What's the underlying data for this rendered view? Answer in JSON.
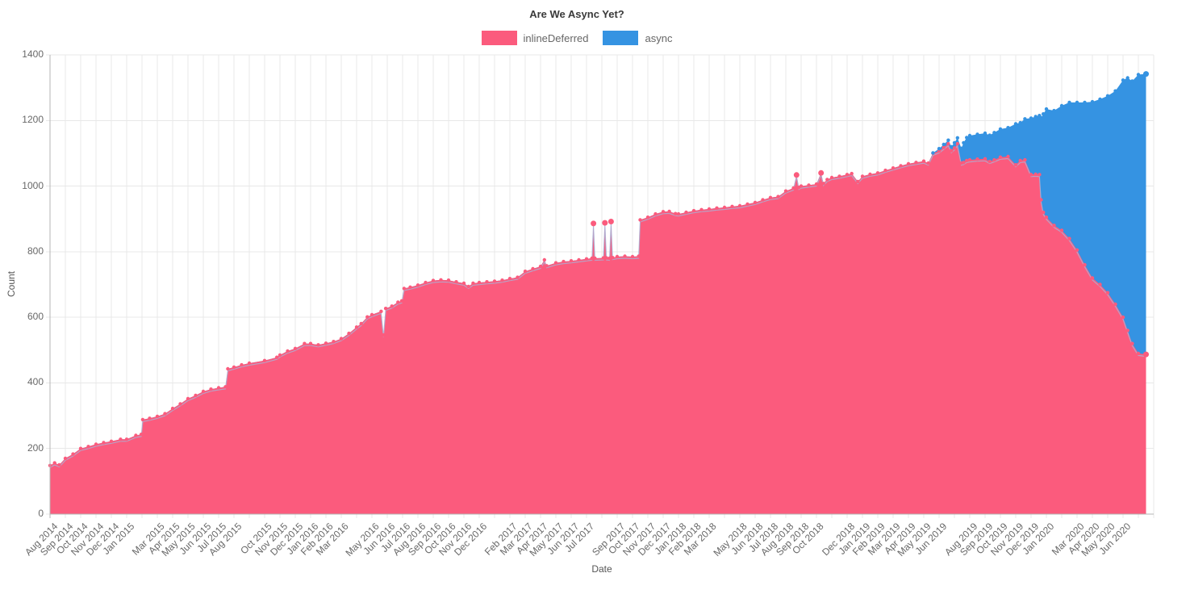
{
  "title": "Are We Async Yet?",
  "legend": [
    {
      "label": "inlineDeferred",
      "color": "#FB5B7D"
    },
    {
      "label": "async",
      "color": "#3593E2"
    }
  ],
  "chart_data": {
    "type": "area",
    "stacked": true,
    "title": "Are We Async Yet?",
    "xlabel": "Date",
    "ylabel": "Count",
    "ylim": [
      0,
      1400
    ],
    "yticks": [
      0,
      200,
      400,
      600,
      800,
      1000,
      1200,
      1400
    ],
    "grid": true,
    "legend_position": "top",
    "x_unit": "months since Aug 2014",
    "x_axis_month_count": 72,
    "series_names": [
      "inlineDeferred",
      "async"
    ],
    "series_colors": [
      "#FB5B7D",
      "#3593E2"
    ],
    "line_edge_color": "#A9B4D8",
    "xtick_labels": [
      [
        0,
        "Aug 2014"
      ],
      [
        1,
        "Sep 2014"
      ],
      [
        2,
        "Oct 2014"
      ],
      [
        3,
        "Nov 2014"
      ],
      [
        4,
        "Dec 2014"
      ],
      [
        5,
        "Jan 2015"
      ],
      [
        7,
        "Mar 2015"
      ],
      [
        8,
        "Apr 2015"
      ],
      [
        9,
        "May 2015"
      ],
      [
        10,
        "Jun 2015"
      ],
      [
        11,
        "Jul 2015"
      ],
      [
        12,
        "Aug 2015"
      ],
      [
        14,
        "Oct 2015"
      ],
      [
        15,
        "Nov 2015"
      ],
      [
        16,
        "Dec 2015"
      ],
      [
        17,
        "Jan 2016"
      ],
      [
        18,
        "Feb 2016"
      ],
      [
        19,
        "Mar 2016"
      ],
      [
        21,
        "May 2016"
      ],
      [
        22,
        "Jun 2016"
      ],
      [
        23,
        "Jul 2016"
      ],
      [
        24,
        "Aug 2016"
      ],
      [
        25,
        "Sep 2016"
      ],
      [
        26,
        "Oct 2016"
      ],
      [
        27,
        "Nov 2016"
      ],
      [
        28,
        "Dec 2016"
      ],
      [
        30,
        "Feb 2017"
      ],
      [
        31,
        "Mar 2017"
      ],
      [
        32,
        "Apr 2017"
      ],
      [
        33,
        "May 2017"
      ],
      [
        34,
        "Jun 2017"
      ],
      [
        35,
        "Jul 2017"
      ],
      [
        37,
        "Sep 2017"
      ],
      [
        38,
        "Oct 2017"
      ],
      [
        39,
        "Nov 2017"
      ],
      [
        40,
        "Dec 2017"
      ],
      [
        41,
        "Jan 2018"
      ],
      [
        42,
        "Feb 2018"
      ],
      [
        43,
        "Mar 2018"
      ],
      [
        45,
        "May 2018"
      ],
      [
        46,
        "Jun 2018"
      ],
      [
        47,
        "Jul 2018"
      ],
      [
        48,
        "Aug 2018"
      ],
      [
        49,
        "Sep 2018"
      ],
      [
        50,
        "Oct 2018"
      ],
      [
        52,
        "Dec 2018"
      ],
      [
        53,
        "Jan 2019"
      ],
      [
        54,
        "Feb 2019"
      ],
      [
        55,
        "Mar 2019"
      ],
      [
        56,
        "Apr 2019"
      ],
      [
        57,
        "May 2019"
      ],
      [
        58,
        "Jun 2019"
      ],
      [
        60,
        "Aug 2019"
      ],
      [
        61,
        "Sep 2019"
      ],
      [
        62,
        "Oct 2019"
      ],
      [
        63,
        "Nov 2019"
      ],
      [
        64,
        "Dec 2019"
      ],
      [
        65,
        "Jan 2020"
      ],
      [
        67,
        "Mar 2020"
      ],
      [
        68,
        "Apr 2020"
      ],
      [
        69,
        "May 2020"
      ],
      [
        70,
        "Jun 2020"
      ]
    ],
    "points": [
      [
        0,
        148,
        0
      ],
      [
        0.3,
        156,
        0
      ],
      [
        0.6,
        150,
        0
      ],
      [
        1,
        170,
        0
      ],
      [
        1.5,
        183,
        0
      ],
      [
        2,
        200,
        0
      ],
      [
        2.5,
        206,
        0
      ],
      [
        3,
        213,
        0
      ],
      [
        3.5,
        218,
        0
      ],
      [
        4,
        222,
        0
      ],
      [
        4.6,
        228,
        0
      ],
      [
        5,
        228,
        0
      ],
      [
        5.6,
        240,
        0
      ],
      [
        5.95,
        243,
        0
      ],
      [
        6.05,
        288,
        0
      ],
      [
        6.5,
        292,
        0
      ],
      [
        7,
        298,
        0
      ],
      [
        7.5,
        306,
        0
      ],
      [
        8,
        322,
        0
      ],
      [
        8.5,
        336,
        0
      ],
      [
        9,
        352,
        0
      ],
      [
        9.5,
        362,
        0
      ],
      [
        10,
        374,
        0
      ],
      [
        10.5,
        381,
        0
      ],
      [
        11,
        385,
        0
      ],
      [
        11.45,
        388,
        0
      ],
      [
        11.6,
        443,
        0
      ],
      [
        12,
        448,
        0
      ],
      [
        12.5,
        455,
        0
      ],
      [
        13,
        460,
        0
      ],
      [
        14,
        468,
        0
      ],
      [
        14.8,
        478,
        0
      ],
      [
        15,
        485,
        0
      ],
      [
        15.5,
        497,
        0
      ],
      [
        16,
        505,
        0
      ],
      [
        16.6,
        520,
        0
      ],
      [
        17,
        520,
        0
      ],
      [
        17.5,
        516,
        0
      ],
      [
        18,
        521,
        0
      ],
      [
        18.5,
        526,
        0
      ],
      [
        19,
        535,
        0
      ],
      [
        19.5,
        551,
        0
      ],
      [
        20,
        570,
        0
      ],
      [
        20.3,
        581,
        0
      ],
      [
        20.7,
        601,
        0
      ],
      [
        21,
        608,
        0
      ],
      [
        21.6,
        618,
        0
      ],
      [
        21.75,
        546,
        0
      ],
      [
        21.9,
        627,
        0
      ],
      [
        22.3,
        634,
        0
      ],
      [
        22.7,
        646,
        0
      ],
      [
        22.95,
        650,
        0
      ],
      [
        23.1,
        688,
        0
      ],
      [
        23.5,
        692,
        0
      ],
      [
        24,
        698,
        0
      ],
      [
        24.5,
        706,
        0
      ],
      [
        25,
        712,
        0
      ],
      [
        25.5,
        714,
        0
      ],
      [
        26,
        713,
        0
      ],
      [
        26.5,
        708,
        0
      ],
      [
        27,
        704,
        0
      ],
      [
        27.3,
        694,
        0
      ],
      [
        27.6,
        704,
        0
      ],
      [
        28,
        706,
        0
      ],
      [
        28.5,
        708,
        0
      ],
      [
        29,
        710,
        0
      ],
      [
        29.5,
        713,
        0
      ],
      [
        30,
        718,
        0
      ],
      [
        30.5,
        722,
        0
      ],
      [
        31,
        740,
        0
      ],
      [
        31.5,
        748,
        0
      ],
      [
        32,
        755,
        0
      ],
      [
        32.25,
        775,
        0
      ],
      [
        32.4,
        757,
        0
      ],
      [
        33,
        766,
        0
      ],
      [
        33.5,
        770,
        0
      ],
      [
        34,
        772,
        0
      ],
      [
        34.5,
        775,
        0
      ],
      [
        35,
        778,
        0
      ],
      [
        35.35,
        780,
        0
      ],
      [
        35.45,
        886,
        0
      ],
      [
        35.55,
        780,
        0
      ],
      [
        36.1,
        781,
        0
      ],
      [
        36.2,
        888,
        0
      ],
      [
        36.3,
        781,
        0
      ],
      [
        36.5,
        780,
        0
      ],
      [
        36.6,
        892,
        0
      ],
      [
        36.7,
        782,
        0
      ],
      [
        37,
        785,
        0
      ],
      [
        37.5,
        786,
        0
      ],
      [
        38,
        785,
        0
      ],
      [
        38.4,
        786,
        0
      ],
      [
        38.5,
        897,
        0
      ],
      [
        39,
        905,
        0
      ],
      [
        39.5,
        915,
        0
      ],
      [
        40,
        922,
        0
      ],
      [
        40.4,
        923,
        0
      ],
      [
        40.8,
        916,
        0
      ],
      [
        41,
        915,
        0
      ],
      [
        41.5,
        920,
        0
      ],
      [
        42,
        925,
        0
      ],
      [
        42.5,
        928,
        0
      ],
      [
        43,
        930,
        0
      ],
      [
        43.5,
        933,
        0
      ],
      [
        44,
        935,
        0
      ],
      [
        44.5,
        938,
        0
      ],
      [
        45,
        940,
        0
      ],
      [
        45.5,
        945,
        0
      ],
      [
        46,
        950,
        0
      ],
      [
        46.5,
        958,
        0
      ],
      [
        47,
        965,
        0
      ],
      [
        47.5,
        968,
        0
      ],
      [
        48,
        985,
        0
      ],
      [
        48.5,
        994,
        0
      ],
      [
        48.7,
        1034,
        0
      ],
      [
        48.85,
        996,
        0
      ],
      [
        49,
        1000,
        0
      ],
      [
        49.5,
        1003,
        0
      ],
      [
        50,
        1006,
        0
      ],
      [
        50.3,
        1040,
        0
      ],
      [
        50.45,
        1008,
        0
      ],
      [
        50.7,
        1020,
        0
      ],
      [
        51,
        1026,
        0
      ],
      [
        51.5,
        1030,
        0
      ],
      [
        52,
        1035,
        0
      ],
      [
        52.3,
        1038,
        0
      ],
      [
        52.7,
        1014,
        0
      ],
      [
        53,
        1030,
        0
      ],
      [
        53.5,
        1036,
        0
      ],
      [
        54,
        1040,
        0
      ],
      [
        54.5,
        1048,
        0
      ],
      [
        55,
        1055,
        0
      ],
      [
        55.5,
        1062,
        0
      ],
      [
        56,
        1068,
        0
      ],
      [
        56.5,
        1072,
        0
      ],
      [
        57,
        1076,
        0
      ],
      [
        57.3,
        1070,
        0
      ],
      [
        57.6,
        1100,
        1
      ],
      [
        58,
        1107,
        7
      ],
      [
        58.3,
        1118,
        9
      ],
      [
        58.6,
        1129,
        11
      ],
      [
        58.8,
        1108,
        12
      ],
      [
        59,
        1116,
        16
      ],
      [
        59.2,
        1129,
        18
      ],
      [
        59.45,
        1070,
        45
      ],
      [
        59.6,
        1072,
        60
      ],
      [
        59.8,
        1078,
        70
      ],
      [
        60,
        1080,
        74
      ],
      [
        60.5,
        1082,
        76
      ],
      [
        61,
        1083,
        78
      ],
      [
        61.3,
        1075,
        80
      ],
      [
        61.6,
        1080,
        83
      ],
      [
        62,
        1088,
        86
      ],
      [
        62.5,
        1090,
        88
      ],
      [
        63,
        1065,
        125
      ],
      [
        63.3,
        1078,
        115
      ],
      [
        63.6,
        1080,
        125
      ],
      [
        64,
        1035,
        172
      ],
      [
        64.3,
        1036,
        176
      ],
      [
        64.55,
        1035,
        180
      ],
      [
        64.65,
        958,
        250
      ],
      [
        64.8,
        920,
        300
      ],
      [
        65,
        905,
        330
      ],
      [
        65.5,
        880,
        350
      ],
      [
        66,
        865,
        380
      ],
      [
        66.5,
        840,
        415
      ],
      [
        67,
        805,
        450
      ],
      [
        67.5,
        760,
        495
      ],
      [
        68,
        720,
        537
      ],
      [
        68.5,
        700,
        565
      ],
      [
        69,
        675,
        600
      ],
      [
        69.5,
        640,
        650
      ],
      [
        70,
        600,
        723
      ],
      [
        70.3,
        560,
        770
      ],
      [
        70.6,
        520,
        800
      ],
      [
        71,
        490,
        850
      ],
      [
        71.5,
        487,
        855
      ]
    ],
    "marker_dots": {
      "inlineDeferred": [
        [
          35.45,
          886
        ],
        [
          36.2,
          888
        ],
        [
          36.6,
          892
        ],
        [
          48.7,
          1034
        ],
        [
          50.3,
          1040
        ],
        [
          71.5,
          487
        ]
      ],
      "asyncTotal": [
        [
          71.5,
          1342
        ]
      ]
    }
  }
}
